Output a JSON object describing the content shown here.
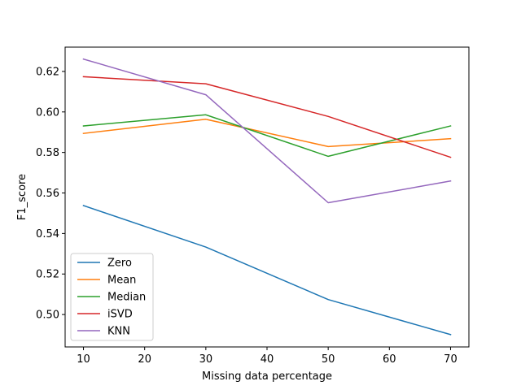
{
  "chart_data": {
    "type": "line",
    "title": "",
    "xlabel": "Missing data percentage",
    "ylabel": "F1_score",
    "x": [
      10,
      30,
      50,
      70
    ],
    "xlim": [
      7,
      73
    ],
    "ylim": [
      0.484,
      0.632
    ],
    "xticks": [
      10,
      20,
      30,
      40,
      50,
      60,
      70
    ],
    "yticks": [
      0.5,
      0.52,
      0.54,
      0.56,
      0.58,
      0.6,
      0.62
    ],
    "grid": false,
    "legend_position": "lower-left",
    "series": [
      {
        "name": "Zero",
        "color": "#1f77b4",
        "values": [
          0.5538,
          0.5333,
          0.5074,
          0.4901
        ]
      },
      {
        "name": "Mean",
        "color": "#ff7f0e",
        "values": [
          0.5894,
          0.5964,
          0.5829,
          0.5868
        ]
      },
      {
        "name": "Median",
        "color": "#2ca02c",
        "values": [
          0.5931,
          0.5986,
          0.5781,
          0.5931
        ]
      },
      {
        "name": "iSVD",
        "color": "#d62728",
        "values": [
          0.6174,
          0.6139,
          0.5978,
          0.5776
        ]
      },
      {
        "name": "KNN",
        "color": "#9467bd",
        "values": [
          0.6261,
          0.6085,
          0.5552,
          0.5659
        ]
      }
    ]
  }
}
